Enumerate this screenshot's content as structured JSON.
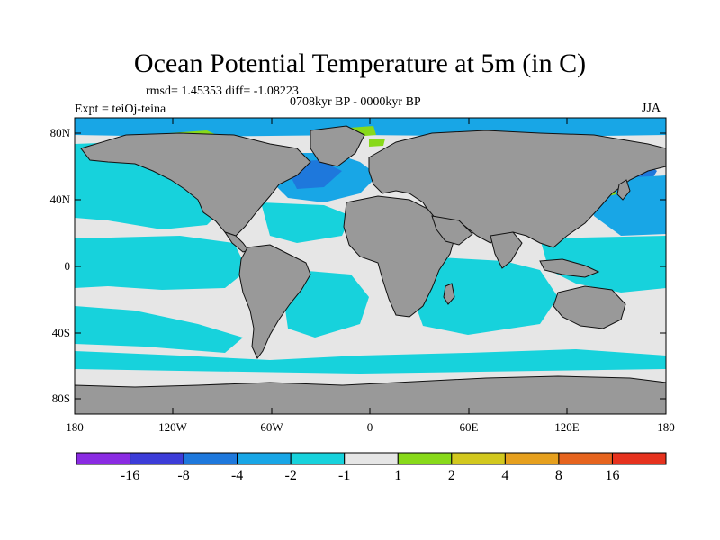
{
  "title": "Ocean Potential Temperature at 5m (in C)",
  "stats_line": "rmsd= 1.45353 diff= -1.08223",
  "period": "0708kyr BP - 0000kyr BP",
  "experiment": "Expt = teiOj-teina",
  "season": "JJA",
  "lat_labels": [
    "80N",
    "40N",
    "0",
    "40S",
    "80S"
  ],
  "lon_labels": [
    "180",
    "120W",
    "60W",
    "0",
    "60E",
    "120E",
    "180"
  ],
  "colors": {
    "land": "#999999",
    "coast": "#111111",
    "ocean_neutral": "#e6e6e6",
    "ocean_cyan": "#17d2dc",
    "ocean_sky": "#18a6e6",
    "ocean_blue": "#1e78dc",
    "ocean_green": "#88d91a",
    "frame": "#000000"
  },
  "colorbar": {
    "ticks": [
      "-16",
      "-8",
      "-4",
      "-2",
      "-1",
      "1",
      "2",
      "4",
      "8",
      "16"
    ],
    "bins": [
      "#8a2be2",
      "#3c3cd8",
      "#1e78dc",
      "#18a6e6",
      "#17d2dc",
      "#e6e6e6",
      "#88d91a",
      "#d2c81e",
      "#e6a01e",
      "#e6641e",
      "#e6321e"
    ]
  }
}
